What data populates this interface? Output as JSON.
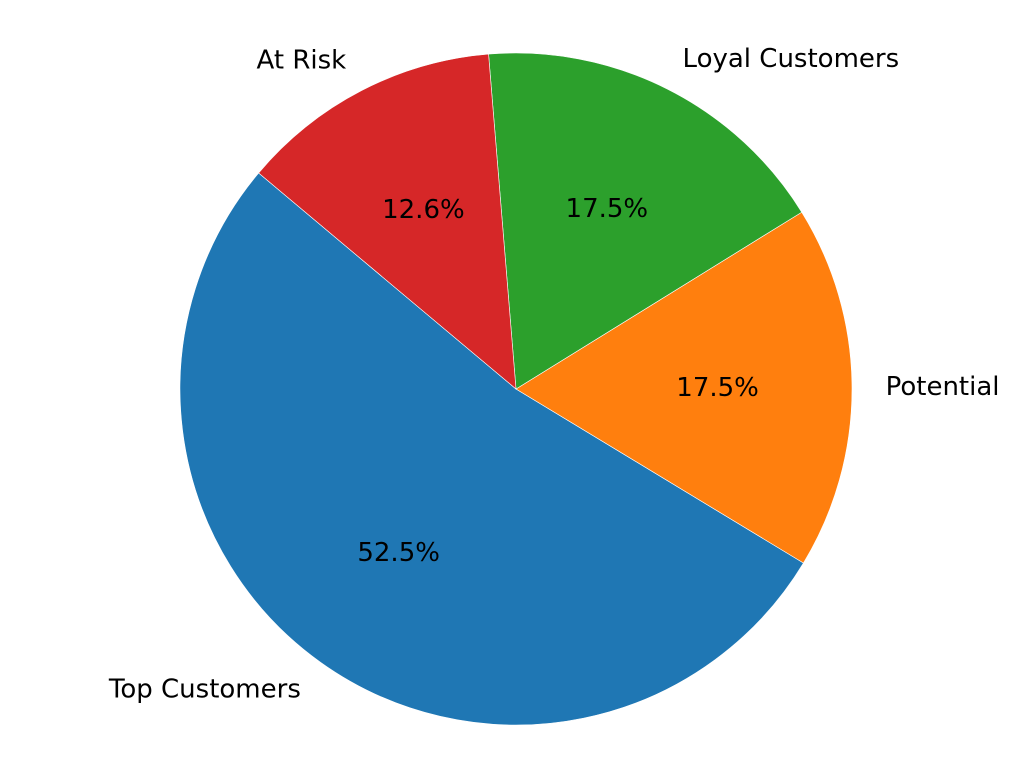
{
  "chart_data": {
    "type": "pie",
    "title": "",
    "legend": "none",
    "categories": [
      "Top Customers",
      "Potential",
      "Loyal Customers",
      "At Risk"
    ],
    "values": [
      52.5,
      17.5,
      17.5,
      12.6
    ],
    "percent_labels": [
      "52.5%",
      "17.5%",
      "17.5%",
      "12.6%"
    ],
    "colors": [
      "#1f77b4",
      "#ff7f0e",
      "#2ca02c",
      "#d62728"
    ],
    "start_angle_deg": 140,
    "direction": "counterclockwise"
  }
}
